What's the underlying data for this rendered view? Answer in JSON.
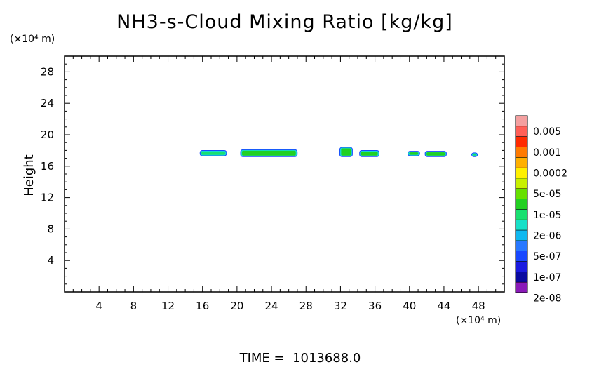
{
  "chart_data": {
    "type": "contour",
    "title": "NH3-s-Cloud Mixing Ratio [kg/kg]",
    "ylabel": "Height",
    "x_unit": "(×10⁴ m)",
    "y_unit": "(×10⁴ m)",
    "xlim": [
      0,
      51
    ],
    "ylim": [
      0,
      30
    ],
    "x_ticks": [
      4,
      8,
      12,
      16,
      20,
      24,
      28,
      32,
      36,
      40,
      44,
      48
    ],
    "y_ticks": [
      4,
      8,
      12,
      16,
      20,
      24,
      28
    ],
    "footer": "TIME =  1013688.0",
    "colorbar": {
      "labels": [
        "0.005",
        "0.001",
        "0.0002",
        "5e-05",
        "1e-05",
        "2e-06",
        "5e-07",
        "1e-07",
        "2e-08"
      ],
      "colors_top_to_bottom": [
        "#f4a0a0",
        "#ff5f57",
        "#ff2a00",
        "#ff7a00",
        "#ffb000",
        "#fff000",
        "#c8f000",
        "#66e000",
        "#22d022",
        "#19e070",
        "#17e0c8",
        "#10b8f0",
        "#2878ff",
        "#1848ff",
        "#1a1ae0",
        "#0a0aa0",
        "#8a1ab8"
      ]
    },
    "cloud_regions": [
      {
        "x": [
          15.8,
          18.7
        ],
        "y": [
          17.4,
          17.9
        ],
        "level": "2e-06"
      },
      {
        "x": [
          20.5,
          26.9
        ],
        "y": [
          17.3,
          18.0
        ],
        "level": "1e-05"
      },
      {
        "x": [
          32.0,
          33.3
        ],
        "y": [
          17.3,
          18.3
        ],
        "level": "1e-05"
      },
      {
        "x": [
          34.3,
          36.4
        ],
        "y": [
          17.3,
          17.9
        ],
        "level": "1e-05"
      },
      {
        "x": [
          39.9,
          41.1
        ],
        "y": [
          17.4,
          17.8
        ],
        "level": "1e-05"
      },
      {
        "x": [
          41.9,
          44.2
        ],
        "y": [
          17.3,
          17.8
        ],
        "level": "1e-05"
      },
      {
        "x": [
          47.3,
          47.8
        ],
        "y": [
          17.3,
          17.6
        ],
        "level": "2e-06"
      }
    ]
  }
}
